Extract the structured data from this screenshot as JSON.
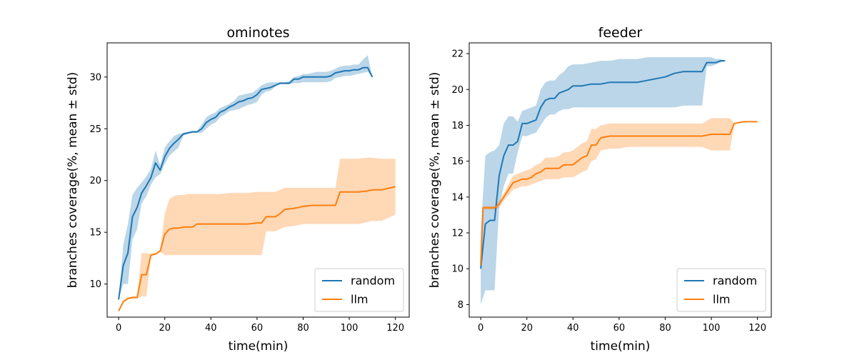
{
  "chart_data": [
    {
      "type": "line",
      "title": "ominotes",
      "xlabel": "time(min)",
      "ylabel": "branches coverage(%, mean ± std)",
      "xlim": [
        -5,
        126
      ],
      "ylim": [
        6.8,
        33.3
      ],
      "xticks": [
        0,
        20,
        40,
        60,
        80,
        100,
        120
      ],
      "yticks": [
        10,
        15,
        20,
        25,
        30
      ],
      "legend": {
        "placement": "lower right",
        "entries": [
          "random",
          "llm"
        ]
      },
      "grid": false,
      "series": [
        {
          "name": "random",
          "color": "#1f77b4",
          "x": [
            0,
            2,
            4,
            6,
            8,
            10,
            12,
            14,
            16,
            18,
            20,
            22,
            24,
            26,
            28,
            30,
            32,
            34,
            36,
            38,
            40,
            42,
            44,
            46,
            48,
            50,
            52,
            54,
            56,
            58,
            60,
            62,
            64,
            66,
            68,
            70,
            72,
            74,
            76,
            78,
            80,
            82,
            84,
            86,
            88,
            90,
            92,
            94,
            96,
            98,
            100,
            102,
            104,
            106,
            108,
            110
          ],
          "mean": [
            8.5,
            11.8,
            13.0,
            16.5,
            17.4,
            18.8,
            19.5,
            20.3,
            21.7,
            21.0,
            22.3,
            23.1,
            23.6,
            24.0,
            24.5,
            24.6,
            24.7,
            24.7,
            25.0,
            25.6,
            25.9,
            26.1,
            26.6,
            26.8,
            27.1,
            27.3,
            27.6,
            27.7,
            27.9,
            28.0,
            28.3,
            28.8,
            28.9,
            29.0,
            29.2,
            29.4,
            29.4,
            29.4,
            29.8,
            29.8,
            30.0,
            30.0,
            30.0,
            30.0,
            30.0,
            30.0,
            30.1,
            30.4,
            30.5,
            30.6,
            30.6,
            30.7,
            30.7,
            30.9,
            30.9,
            30.0
          ],
          "lower": [
            8.5,
            10.0,
            10.0,
            14.3,
            15.3,
            17.8,
            18.5,
            19.6,
            20.3,
            20.6,
            21.6,
            22.4,
            22.8,
            23.2,
            24.3,
            24.5,
            24.6,
            24.6,
            24.6,
            25.0,
            25.4,
            25.6,
            26.1,
            26.4,
            26.7,
            26.8,
            26.9,
            27.1,
            27.3,
            27.4,
            27.6,
            28.3,
            28.6,
            28.7,
            29.1,
            29.3,
            29.3,
            29.3,
            29.4,
            29.4,
            29.5,
            29.5,
            29.5,
            29.5,
            29.5,
            29.5,
            29.6,
            29.9,
            30.0,
            30.1,
            30.1,
            30.2,
            30.3,
            30.4,
            30.5,
            30.0
          ],
          "upper": [
            8.5,
            13.8,
            15.8,
            18.6,
            19.3,
            19.8,
            20.4,
            21.1,
            22.9,
            21.5,
            23.2,
            23.8,
            24.3,
            24.5,
            24.6,
            24.7,
            24.8,
            24.8,
            25.4,
            26.1,
            26.4,
            26.6,
            27.0,
            27.2,
            27.4,
            27.7,
            28.2,
            28.3,
            28.4,
            28.5,
            28.8,
            29.2,
            29.4,
            29.5,
            29.5,
            29.5,
            29.5,
            29.6,
            30.0,
            30.1,
            30.3,
            30.3,
            30.4,
            30.5,
            30.5,
            30.5,
            30.6,
            30.8,
            31.0,
            31.1,
            31.1,
            31.2,
            31.2,
            31.7,
            32.1,
            30.0
          ]
        },
        {
          "name": "llm",
          "color": "#ff7f0e",
          "x": [
            0,
            2,
            4,
            6,
            8,
            10,
            12,
            14,
            16,
            18,
            20,
            22,
            24,
            26,
            28,
            30,
            32,
            34,
            36,
            40,
            44,
            48,
            52,
            56,
            60,
            62,
            64,
            68,
            70,
            72,
            76,
            80,
            84,
            90,
            94,
            96,
            100,
            104,
            108,
            110,
            114,
            120
          ],
          "mean": [
            7.4,
            8.3,
            8.6,
            8.7,
            8.7,
            10.9,
            10.9,
            12.8,
            12.9,
            13.2,
            14.8,
            15.3,
            15.4,
            15.4,
            15.5,
            15.5,
            15.5,
            15.8,
            15.8,
            15.8,
            15.8,
            15.8,
            15.8,
            15.8,
            15.9,
            15.9,
            16.5,
            16.5,
            16.8,
            17.2,
            17.3,
            17.5,
            17.6,
            17.6,
            17.6,
            18.9,
            18.9,
            18.9,
            19.0,
            19.1,
            19.1,
            19.4
          ],
          "lower": [
            7.3,
            8.2,
            8.5,
            8.6,
            8.6,
            8.8,
            8.8,
            12.7,
            12.8,
            13.1,
            12.8,
            12.8,
            12.8,
            12.8,
            12.8,
            12.8,
            12.8,
            12.8,
            12.8,
            12.8,
            12.8,
            12.8,
            12.8,
            12.8,
            12.8,
            12.8,
            15.1,
            15.1,
            15.3,
            15.5,
            15.6,
            15.8,
            15.8,
            15.8,
            15.8,
            15.8,
            15.8,
            15.8,
            16.0,
            16.1,
            16.1,
            16.7
          ],
          "upper": [
            7.5,
            8.4,
            8.7,
            8.8,
            8.8,
            13.0,
            13.0,
            12.9,
            13.0,
            13.3,
            16.8,
            18.2,
            18.5,
            18.6,
            18.6,
            18.7,
            18.7,
            18.7,
            18.7,
            18.7,
            18.7,
            18.8,
            18.8,
            18.8,
            18.9,
            18.9,
            18.9,
            18.9,
            19.1,
            19.3,
            19.3,
            19.3,
            19.3,
            19.3,
            19.3,
            22.1,
            22.1,
            22.1,
            22.2,
            22.2,
            22.1,
            22.1
          ]
        }
      ]
    },
    {
      "type": "line",
      "title": "feeder",
      "xlabel": "time(min)",
      "ylabel": "branches coverage(%, mean ± std)",
      "xlim": [
        -5,
        126
      ],
      "ylim": [
        7.3,
        22.6
      ],
      "xticks": [
        0,
        20,
        40,
        60,
        80,
        100,
        120
      ],
      "yticks": [
        8,
        10,
        12,
        14,
        16,
        18,
        20,
        22
      ],
      "legend": {
        "placement": "lower right",
        "entries": [
          "random",
          "llm"
        ]
      },
      "grid": false,
      "series": [
        {
          "name": "random",
          "color": "#1f77b4",
          "x": [
            0,
            2,
            4,
            6,
            8,
            10,
            12,
            14,
            16,
            18,
            20,
            22,
            24,
            26,
            28,
            30,
            32,
            34,
            36,
            38,
            40,
            44,
            48,
            52,
            56,
            60,
            64,
            68,
            72,
            76,
            80,
            84,
            88,
            92,
            96,
            98,
            100,
            102,
            104,
            106
          ],
          "mean": [
            10.0,
            12.5,
            12.7,
            12.7,
            15.2,
            16.3,
            16.9,
            16.9,
            17.1,
            18.1,
            18.1,
            18.2,
            18.3,
            19.0,
            19.4,
            19.5,
            19.5,
            19.8,
            19.9,
            20.0,
            20.2,
            20.2,
            20.3,
            20.3,
            20.4,
            20.4,
            20.4,
            20.4,
            20.5,
            20.6,
            20.7,
            20.9,
            21.0,
            21.0,
            21.0,
            21.5,
            21.5,
            21.5,
            21.6,
            21.6
          ],
          "lower": [
            8.0,
            8.8,
            8.8,
            8.8,
            13.5,
            14.6,
            15.3,
            15.3,
            16.5,
            17.4,
            17.4,
            17.5,
            17.6,
            18.0,
            18.4,
            18.6,
            18.6,
            18.8,
            18.9,
            18.9,
            19.0,
            19.0,
            19.0,
            19.0,
            19.0,
            19.0,
            19.0,
            19.0,
            19.0,
            19.0,
            19.0,
            19.0,
            19.1,
            19.1,
            19.1,
            21.3,
            21.3,
            21.4,
            21.5,
            21.6
          ],
          "upper": [
            12.0,
            16.3,
            16.5,
            16.6,
            16.9,
            18.1,
            18.5,
            18.5,
            18.2,
            18.8,
            18.9,
            19.0,
            19.1,
            20.0,
            20.4,
            20.5,
            20.5,
            20.8,
            21.0,
            21.3,
            21.4,
            21.4,
            21.5,
            21.6,
            21.6,
            21.7,
            21.7,
            21.7,
            21.8,
            21.8,
            21.8,
            21.8,
            21.8,
            21.8,
            21.8,
            21.8,
            21.8,
            21.7,
            21.7,
            21.6
          ]
        },
        {
          "name": "llm",
          "color": "#ff7f0e",
          "x": [
            0,
            1,
            2,
            4,
            6,
            8,
            10,
            12,
            14,
            16,
            18,
            20,
            22,
            24,
            26,
            28,
            30,
            32,
            34,
            36,
            38,
            40,
            44,
            46,
            48,
            50,
            52,
            56,
            60,
            64,
            68,
            72,
            76,
            80,
            84,
            88,
            92,
            96,
            100,
            104,
            108,
            110,
            114,
            120
          ],
          "mean": [
            10.2,
            13.4,
            13.4,
            13.4,
            13.4,
            13.6,
            14.0,
            14.4,
            14.8,
            14.9,
            15.0,
            15.0,
            15.1,
            15.3,
            15.4,
            15.6,
            15.6,
            15.6,
            15.6,
            15.8,
            15.8,
            15.8,
            16.2,
            16.3,
            16.9,
            16.9,
            17.3,
            17.4,
            17.4,
            17.4,
            17.4,
            17.4,
            17.4,
            17.4,
            17.4,
            17.4,
            17.4,
            17.4,
            17.5,
            17.5,
            17.5,
            18.1,
            18.2,
            18.2
          ],
          "lower": [
            9.9,
            13.3,
            13.3,
            13.3,
            13.3,
            13.4,
            13.8,
            14.1,
            14.4,
            14.5,
            14.6,
            14.6,
            14.7,
            14.8,
            14.9,
            15.0,
            15.0,
            15.0,
            15.0,
            15.1,
            15.1,
            15.1,
            15.4,
            15.5,
            16.0,
            16.1,
            16.6,
            16.7,
            16.7,
            16.8,
            16.8,
            16.8,
            16.8,
            16.8,
            16.8,
            16.8,
            16.8,
            16.8,
            16.6,
            16.6,
            16.6,
            18.1,
            18.2,
            18.2
          ],
          "upper": [
            10.5,
            13.5,
            13.5,
            13.5,
            13.5,
            13.8,
            14.2,
            14.7,
            15.2,
            15.3,
            15.4,
            15.5,
            15.6,
            15.8,
            15.9,
            16.2,
            16.2,
            16.2,
            16.3,
            16.5,
            16.5,
            16.6,
            17.0,
            17.1,
            17.8,
            17.8,
            18.0,
            18.1,
            18.1,
            18.1,
            18.1,
            18.1,
            18.1,
            18.1,
            18.1,
            18.1,
            18.1,
            18.1,
            18.4,
            18.4,
            18.4,
            18.1,
            18.2,
            18.2
          ]
        }
      ]
    }
  ]
}
